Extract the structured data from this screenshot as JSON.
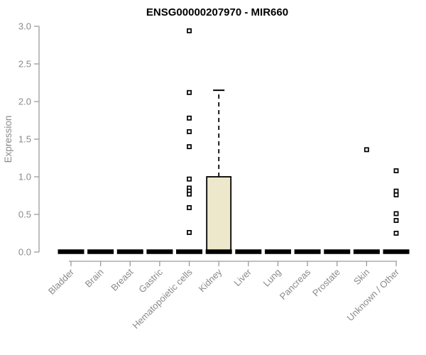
{
  "chart_data": {
    "type": "boxplot",
    "title": "ENSG00000207970 - MIR660",
    "xlabel": "",
    "ylabel": "Expression",
    "ylim": [
      0.0,
      3.0
    ],
    "yticks": [
      "0.0",
      "0.5",
      "1.0",
      "1.5",
      "2.0",
      "2.5",
      "3.0"
    ],
    "grid": false,
    "legend": false,
    "categories": [
      "Bladder",
      "Brain",
      "Breast",
      "Gastric",
      "Hematopoietic cells",
      "Kidney",
      "Liver",
      "Lung",
      "Pancreas",
      "Prostate",
      "Skin",
      "Unknown / Other"
    ],
    "series": [
      {
        "category": "Bladder",
        "whisker_low": 0,
        "q1": 0,
        "median": 0,
        "q3": 0,
        "whisker_high": 0,
        "outliers": []
      },
      {
        "category": "Brain",
        "whisker_low": 0,
        "q1": 0,
        "median": 0,
        "q3": 0,
        "whisker_high": 0,
        "outliers": []
      },
      {
        "category": "Breast",
        "whisker_low": 0,
        "q1": 0,
        "median": 0,
        "q3": 0,
        "whisker_high": 0,
        "outliers": []
      },
      {
        "category": "Gastric",
        "whisker_low": 0,
        "q1": 0,
        "median": 0,
        "q3": 0,
        "whisker_high": 0,
        "outliers": []
      },
      {
        "category": "Hematopoietic cells",
        "whisker_low": 0,
        "q1": 0,
        "median": 0,
        "q3": 0,
        "whisker_high": 0,
        "outliers": [
          2.94,
          2.12,
          1.78,
          1.6,
          1.4,
          0.97,
          0.85,
          0.81,
          0.77,
          0.59,
          0.26
        ]
      },
      {
        "category": "Kidney",
        "whisker_low": 0,
        "q1": 0,
        "median": 0,
        "q3": 1.0,
        "whisker_high": 2.15,
        "outliers": []
      },
      {
        "category": "Liver",
        "whisker_low": 0,
        "q1": 0,
        "median": 0,
        "q3": 0,
        "whisker_high": 0,
        "outliers": []
      },
      {
        "category": "Lung",
        "whisker_low": 0,
        "q1": 0,
        "median": 0,
        "q3": 0,
        "whisker_high": 0,
        "outliers": []
      },
      {
        "category": "Pancreas",
        "whisker_low": 0,
        "q1": 0,
        "median": 0,
        "q3": 0,
        "whisker_high": 0,
        "outliers": []
      },
      {
        "category": "Prostate",
        "whisker_low": 0,
        "q1": 0,
        "median": 0,
        "q3": 0,
        "whisker_high": 0,
        "outliers": []
      },
      {
        "category": "Skin",
        "whisker_low": 0,
        "q1": 0,
        "median": 0,
        "q3": 0,
        "whisker_high": 0,
        "outliers": [
          1.36
        ]
      },
      {
        "category": "Unknown / Other",
        "whisker_low": 0,
        "q1": 0,
        "median": 0,
        "q3": 0,
        "whisker_high": 0,
        "outliers": [
          1.08,
          0.81,
          0.76,
          0.51,
          0.42,
          0.25
        ]
      }
    ],
    "colors": {
      "box_fill": "#EDE7CB",
      "box_border": "#000000",
      "median": "#000000",
      "whisker": "#000000",
      "outlier_stroke": "#000000",
      "outlier_fill": "#ffffff",
      "axis_line": "#9b9b9b",
      "tick_text": "#8a8a8a",
      "title_text": "#000000",
      "background": "#ffffff"
    }
  }
}
